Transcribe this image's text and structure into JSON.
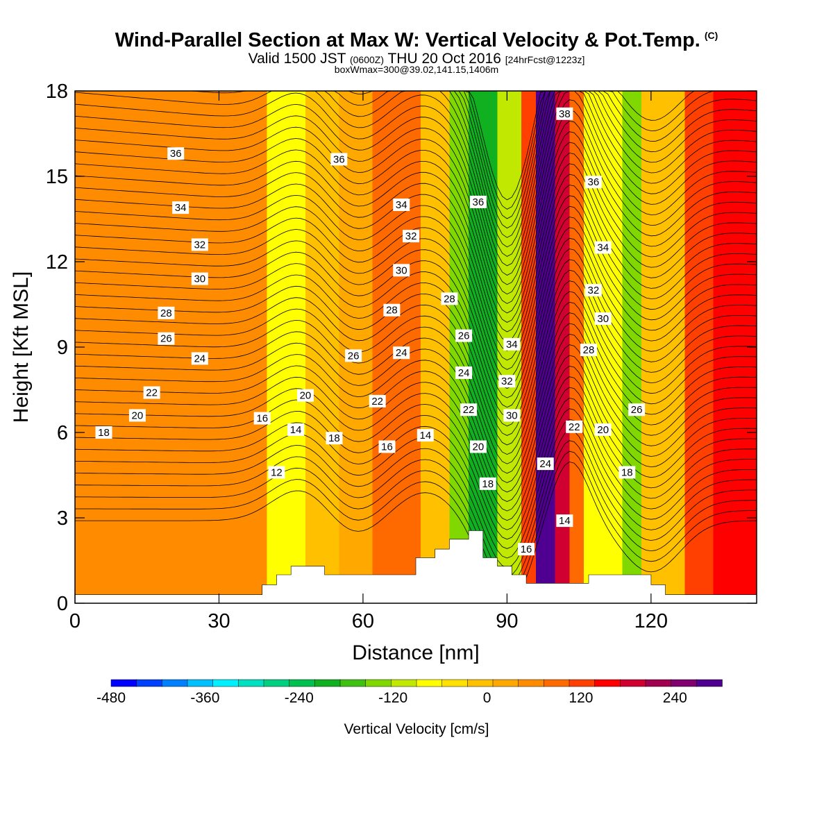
{
  "title": {
    "main": "Wind-Parallel Section at Max W: Vertical Velocity & Pot.Temp.",
    "copyright": "(C)",
    "valid_prefix": "Valid 1500 JST",
    "valid_utc": "(0600Z)",
    "valid_date": "THU 20 Oct 2016",
    "forecast": "[24hrFcst@1223z]",
    "box_info": "boxWmax=300@39.02,141.15,1406m"
  },
  "chart_data": {
    "type": "heatmap",
    "xlabel": "Distance [nm]",
    "ylabel": "Height [Kft MSL]",
    "xlim": [
      0,
      142
    ],
    "ylim": [
      0,
      18
    ],
    "xticks": [
      "0",
      "30",
      "60",
      "90",
      "120"
    ],
    "yticks": [
      "0",
      "3",
      "6",
      "9",
      "12",
      "15",
      "18"
    ],
    "colorbar": {
      "label": "Vertical Velocity [cm/s]",
      "ticks": [
        "-480",
        "-360",
        "-240",
        "-120",
        "0",
        "120",
        "240"
      ],
      "range": [
        -480,
        300
      ],
      "step": 30,
      "colors": [
        "#0000ff",
        "#0040ff",
        "#0080ff",
        "#00c0ff",
        "#00f0ff",
        "#00e0c0",
        "#00d080",
        "#00c050",
        "#10b020",
        "#40c010",
        "#80d800",
        "#c0e800",
        "#ffff00",
        "#ffe000",
        "#ffc000",
        "#ffa800",
        "#ff8c00",
        "#ff6a00",
        "#ff4000",
        "#ff0000",
        "#d00030",
        "#a00050",
        "#800070",
        "#500090"
      ]
    },
    "vertical_velocity_bands": [
      {
        "x": [
          0,
          40
        ],
        "w": 15
      },
      {
        "x": [
          40,
          48
        ],
        "w": -110
      },
      {
        "x": [
          48,
          55
        ],
        "w": -60
      },
      {
        "x": [
          55,
          62
        ],
        "w": -20
      },
      {
        "x": [
          62,
          72
        ],
        "w": 50
      },
      {
        "x": [
          72,
          78
        ],
        "w": -40
      },
      {
        "x": [
          78,
          82
        ],
        "w": -170
      },
      {
        "x": [
          82,
          88
        ],
        "w": -235
      },
      {
        "x": [
          88,
          93
        ],
        "w": -130
      },
      {
        "x": [
          93,
          96
        ],
        "w": 60
      },
      {
        "x": [
          96,
          100
        ],
        "w": 210
      },
      {
        "x": [
          100,
          103
        ],
        "w": 140
      },
      {
        "x": [
          103,
          106
        ],
        "w": 40
      },
      {
        "x": [
          106,
          114
        ],
        "w": -100
      },
      {
        "x": [
          114,
          118
        ],
        "w": -160
      },
      {
        "x": [
          118,
          127
        ],
        "w": -40
      },
      {
        "x": [
          127,
          133
        ],
        "w": 70
      },
      {
        "x": [
          133,
          142
        ],
        "w": 110
      }
    ],
    "terrain_kft": {
      "x": [
        0,
        39,
        39,
        42,
        42,
        45,
        45,
        52,
        52,
        71,
        71,
        75,
        75,
        78,
        78,
        82,
        82,
        85,
        85,
        88,
        88,
        91,
        91,
        94,
        94,
        107,
        107,
        120,
        120,
        123,
        123,
        142
      ],
      "h": [
        0.3,
        0.3,
        0.65,
        0.65,
        1.0,
        1.0,
        1.3,
        1.3,
        1.0,
        1.0,
        1.6,
        1.6,
        1.9,
        1.9,
        2.25,
        2.25,
        2.55,
        2.55,
        1.6,
        1.6,
        1.3,
        1.3,
        1.0,
        1.0,
        0.7,
        0.7,
        1.0,
        1.0,
        0.65,
        0.65,
        0.3,
        0.3
      ]
    },
    "potential_temperature_labels": [
      {
        "text": "36",
        "x": 21,
        "y": 15.8
      },
      {
        "text": "34",
        "x": 22,
        "y": 13.9
      },
      {
        "text": "32",
        "x": 26,
        "y": 12.6
      },
      {
        "text": "30",
        "x": 26,
        "y": 11.4
      },
      {
        "text": "28",
        "x": 19,
        "y": 10.2
      },
      {
        "text": "26",
        "x": 19,
        "y": 9.3
      },
      {
        "text": "24",
        "x": 26,
        "y": 8.6
      },
      {
        "text": "22",
        "x": 16,
        "y": 7.4
      },
      {
        "text": "20",
        "x": 13,
        "y": 6.6
      },
      {
        "text": "18",
        "x": 6,
        "y": 6.0
      },
      {
        "text": "16",
        "x": 39,
        "y": 6.5
      },
      {
        "text": "14",
        "x": 46,
        "y": 6.1
      },
      {
        "text": "12",
        "x": 42,
        "y": 4.6
      },
      {
        "text": "20",
        "x": 48,
        "y": 7.3
      },
      {
        "text": "18",
        "x": 54,
        "y": 5.8
      },
      {
        "text": "16",
        "x": 65,
        "y": 5.5
      },
      {
        "text": "14",
        "x": 73,
        "y": 5.9
      },
      {
        "text": "22",
        "x": 63,
        "y": 7.1
      },
      {
        "text": "24",
        "x": 68,
        "y": 8.8
      },
      {
        "text": "26",
        "x": 58,
        "y": 8.7
      },
      {
        "text": "28",
        "x": 66,
        "y": 10.3
      },
      {
        "text": "30",
        "x": 68,
        "y": 11.7
      },
      {
        "text": "32",
        "x": 70,
        "y": 12.9
      },
      {
        "text": "34",
        "x": 68,
        "y": 14.0
      },
      {
        "text": "36",
        "x": 55,
        "y": 15.6
      },
      {
        "text": "36",
        "x": 84,
        "y": 14.1
      },
      {
        "text": "28",
        "x": 78,
        "y": 10.7
      },
      {
        "text": "26",
        "x": 81,
        "y": 9.4
      },
      {
        "text": "24",
        "x": 81,
        "y": 8.1
      },
      {
        "text": "22",
        "x": 82,
        "y": 6.8
      },
      {
        "text": "20",
        "x": 84,
        "y": 5.5
      },
      {
        "text": "18",
        "x": 86,
        "y": 4.2
      },
      {
        "text": "16",
        "x": 94,
        "y": 1.9
      },
      {
        "text": "34",
        "x": 91,
        "y": 9.1
      },
      {
        "text": "32",
        "x": 90,
        "y": 7.8
      },
      {
        "text": "30",
        "x": 91,
        "y": 6.6
      },
      {
        "text": "24",
        "x": 98,
        "y": 4.9
      },
      {
        "text": "22",
        "x": 104,
        "y": 6.2
      },
      {
        "text": "14",
        "x": 102,
        "y": 2.9
      },
      {
        "text": "38",
        "x": 102,
        "y": 17.2
      },
      {
        "text": "36",
        "x": 108,
        "y": 14.8
      },
      {
        "text": "34",
        "x": 110,
        "y": 12.5
      },
      {
        "text": "32",
        "x": 108,
        "y": 11.0
      },
      {
        "text": "30",
        "x": 110,
        "y": 10.0
      },
      {
        "text": "28",
        "x": 107,
        "y": 8.9
      },
      {
        "text": "26",
        "x": 117,
        "y": 6.8
      },
      {
        "text": "20",
        "x": 110,
        "y": 6.1
      },
      {
        "text": "18",
        "x": 115,
        "y": 4.6
      }
    ]
  }
}
